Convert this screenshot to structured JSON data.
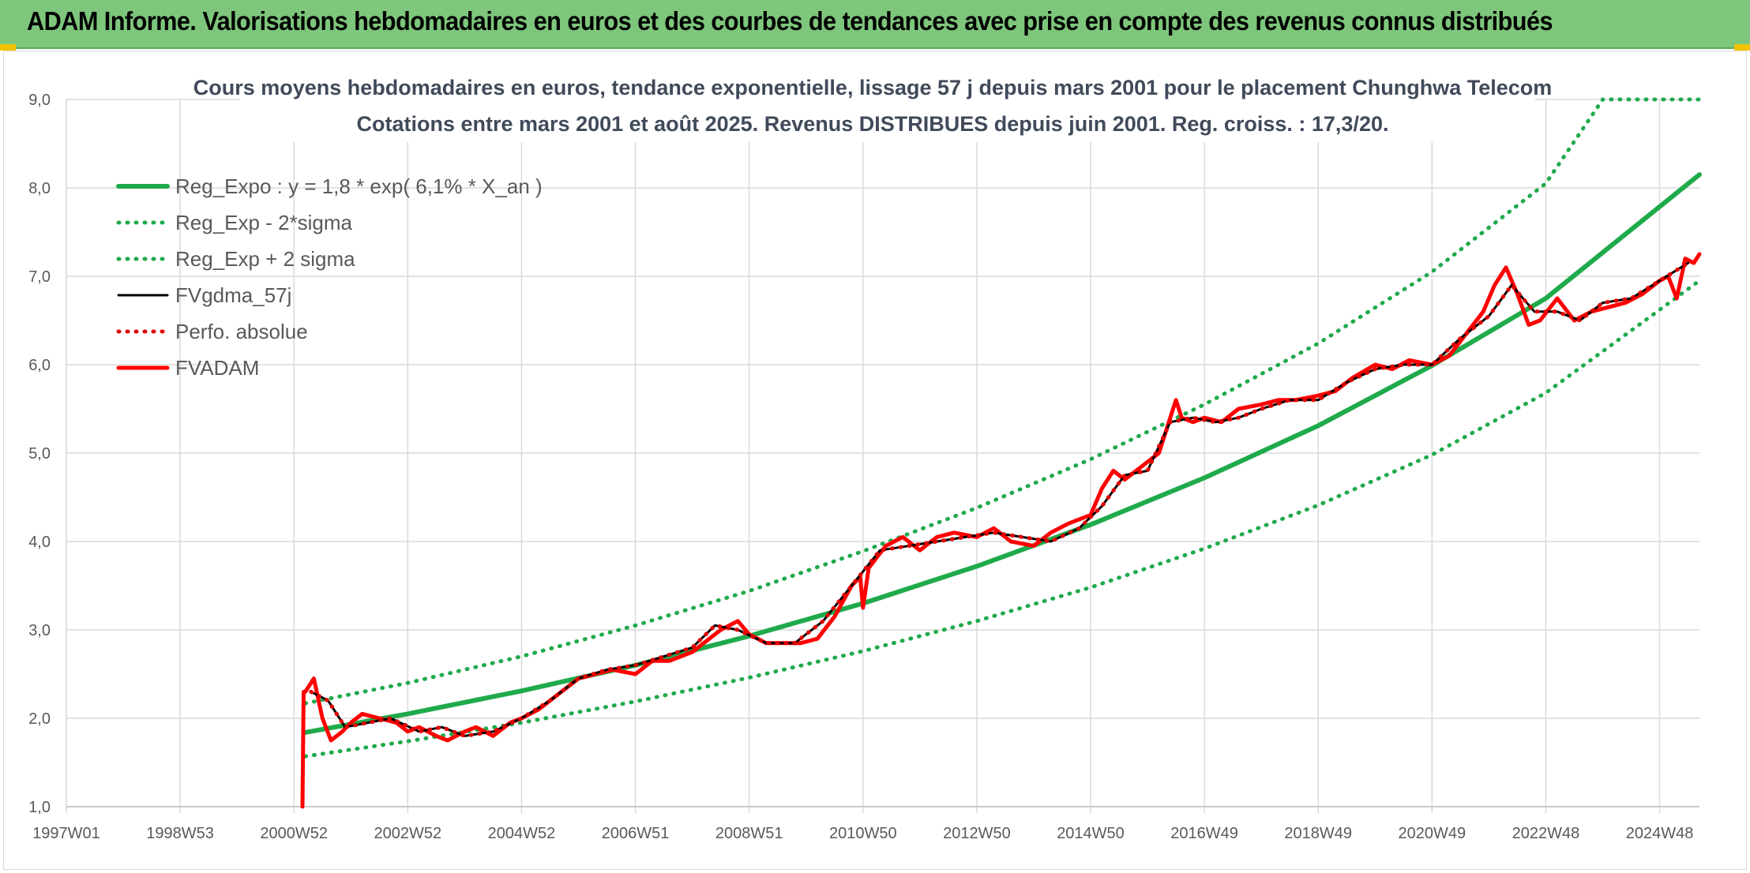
{
  "header": {
    "title": "ADAM Informe. Valorisations hebdomadaires en euros et des courbes de tendances avec prise en compte des revenus connus distribués"
  },
  "colors": {
    "header_bg": "#7dc67b",
    "reg_expo": "#1faa4b",
    "band": "#1faa4b",
    "fvgdma": "#000000",
    "perfo": "#e00000",
    "fvadam": "#ff0000",
    "grid": "#d9d9d9"
  },
  "chart_data": {
    "type": "line",
    "title": "Cours moyens hebdomadaires en euros, tendance exponentielle, lissage 57 j depuis mars 2001 pour le placement Chunghwa Telecom",
    "subtitle": "Cotations entre mars 2001 et août 2025. Revenus DISTRIBUES depuis juin 2001. Reg. croiss. : 17,3/20.",
    "xlabel": "",
    "ylabel": "",
    "ylim": [
      1.0,
      9.0
    ],
    "xlim": [
      1997.0,
      2025.7
    ],
    "y_ticks": [
      "1,0",
      "2,0",
      "3,0",
      "4,0",
      "5,0",
      "6,0",
      "7,0",
      "8,0",
      "9,0"
    ],
    "x_ticks": [
      {
        "label": "1997W01",
        "x": 1997.0
      },
      {
        "label": "1998W53",
        "x": 1999.0
      },
      {
        "label": "2000W52",
        "x": 2001.0
      },
      {
        "label": "2002W52",
        "x": 2003.0
      },
      {
        "label": "2004W52",
        "x": 2005.0
      },
      {
        "label": "2006W51",
        "x": 2007.0
      },
      {
        "label": "2008W51",
        "x": 2009.0
      },
      {
        "label": "2010W50",
        "x": 2011.0
      },
      {
        "label": "2012W50",
        "x": 2013.0
      },
      {
        "label": "2014W50",
        "x": 2015.0
      },
      {
        "label": "2016W49",
        "x": 2017.0
      },
      {
        "label": "2018W49",
        "x": 2019.0
      },
      {
        "label": "2020W49",
        "x": 2021.0
      },
      {
        "label": "2022W48",
        "x": 2023.0
      },
      {
        "label": "2024W48",
        "x": 2025.0
      }
    ],
    "grid": true,
    "legend_position": "top-left",
    "series": [
      {
        "name": "Reg_Expo : y = 1,8 * exp( 6,1% *  X_an )",
        "style": "solid-thick",
        "color": "#1faa4b",
        "x": [
          2001.2,
          2003,
          2005,
          2007,
          2009,
          2011,
          2013,
          2015,
          2017,
          2019,
          2021,
          2023,
          2025.7
        ],
        "values": [
          1.84,
          2.05,
          2.31,
          2.6,
          2.93,
          3.3,
          3.72,
          4.19,
          4.72,
          5.31,
          5.99,
          6.75,
          8.15
        ]
      },
      {
        "name": "Reg_Exp - 2*sigma",
        "style": "dotted",
        "color": "#1faa4b",
        "x": [
          2001.2,
          2003,
          2005,
          2007,
          2009,
          2011,
          2013,
          2015,
          2017,
          2019,
          2021,
          2023,
          2025.7
        ],
        "values": [
          1.57,
          1.74,
          1.95,
          2.19,
          2.46,
          2.76,
          3.1,
          3.48,
          3.92,
          4.41,
          4.98,
          5.68,
          6.95
        ]
      },
      {
        "name": "Reg_Exp + 2 sigma",
        "style": "dotted",
        "color": "#1faa4b",
        "x": [
          2001.2,
          2003,
          2005,
          2007,
          2009,
          2011,
          2013,
          2015,
          2017,
          2019,
          2021,
          2023,
          2024.0,
          2025.7
        ],
        "values": [
          2.17,
          2.4,
          2.7,
          3.05,
          3.44,
          3.89,
          4.38,
          4.93,
          5.55,
          6.24,
          7.05,
          8.05,
          9.0,
          9.0
        ]
      },
      {
        "name": "FVgdma_57j",
        "style": "solid",
        "color": "#000000",
        "x": [
          2001.3,
          2001.6,
          2001.9,
          2002.3,
          2002.7,
          2003.2,
          2003.6,
          2004.0,
          2004.5,
          2005.0,
          2005.5,
          2006.0,
          2006.5,
          2007.0,
          2007.5,
          2008.0,
          2008.4,
          2008.8,
          2009.3,
          2009.8,
          2010.3,
          2010.8,
          2011.3,
          2011.8,
          2012.3,
          2012.8,
          2013.3,
          2013.8,
          2014.3,
          2014.8,
          2015.2,
          2015.6,
          2016.0,
          2016.4,
          2016.8,
          2017.2,
          2017.6,
          2018.0,
          2018.5,
          2019.0,
          2019.5,
          2020.0,
          2020.5,
          2021.0,
          2021.5,
          2022.0,
          2022.4,
          2022.8,
          2023.2,
          2023.6,
          2024.0,
          2024.5,
          2025.0,
          2025.5
        ],
        "values": [
          2.3,
          2.2,
          1.9,
          1.95,
          2.0,
          1.85,
          1.9,
          1.8,
          1.85,
          2.0,
          2.2,
          2.45,
          2.55,
          2.6,
          2.7,
          2.8,
          3.05,
          3.0,
          2.85,
          2.85,
          3.1,
          3.5,
          3.9,
          3.95,
          4.0,
          4.05,
          4.1,
          4.05,
          4.0,
          4.15,
          4.4,
          4.75,
          4.8,
          5.35,
          5.4,
          5.35,
          5.4,
          5.5,
          5.6,
          5.6,
          5.8,
          5.95,
          6.0,
          6.0,
          6.3,
          6.55,
          6.9,
          6.6,
          6.6,
          6.5,
          6.7,
          6.75,
          6.95,
          7.15
        ]
      },
      {
        "name": "Perfo. absolue",
        "style": "dotted",
        "color": "#e00000",
        "x": [
          2001.3,
          2001.6,
          2001.9,
          2002.3,
          2002.7,
          2003.2,
          2003.6,
          2004.0,
          2004.5,
          2005.0,
          2005.5,
          2006.0,
          2006.5,
          2007.0,
          2007.5,
          2008.0,
          2008.4,
          2008.8,
          2009.3,
          2009.8,
          2010.3,
          2010.8,
          2011.3,
          2011.8,
          2012.3,
          2012.8,
          2013.3,
          2013.8,
          2014.3,
          2014.8,
          2015.2,
          2015.6,
          2016.0,
          2016.4,
          2016.8,
          2017.2,
          2017.6,
          2018.0,
          2018.5,
          2019.0,
          2019.5,
          2020.0,
          2020.5,
          2021.0,
          2021.5,
          2022.0,
          2022.4,
          2022.8,
          2023.2,
          2023.6,
          2024.0,
          2024.5,
          2025.0,
          2025.5
        ],
        "values": [
          2.3,
          2.2,
          1.9,
          1.95,
          2.0,
          1.85,
          1.9,
          1.8,
          1.85,
          2.0,
          2.2,
          2.45,
          2.55,
          2.6,
          2.7,
          2.8,
          3.05,
          3.0,
          2.85,
          2.85,
          3.1,
          3.5,
          3.9,
          3.95,
          4.0,
          4.05,
          4.1,
          4.05,
          4.0,
          4.15,
          4.4,
          4.75,
          4.8,
          5.35,
          5.4,
          5.35,
          5.4,
          5.5,
          5.6,
          5.6,
          5.8,
          5.95,
          6.0,
          6.0,
          6.3,
          6.55,
          6.9,
          6.6,
          6.6,
          6.5,
          6.7,
          6.75,
          6.95,
          7.15
        ]
      },
      {
        "name": "FVADAM",
        "style": "solid-thick",
        "color": "#ff0000",
        "x": [
          2001.15,
          2001.17,
          2001.2,
          2001.35,
          2001.5,
          2001.65,
          2001.85,
          2002.0,
          2002.2,
          2002.5,
          2002.8,
          2003.0,
          2003.2,
          2003.5,
          2003.7,
          2004.0,
          2004.2,
          2004.5,
          2004.8,
          2005.0,
          2005.3,
          2005.6,
          2006.0,
          2006.3,
          2006.6,
          2007.0,
          2007.3,
          2007.6,
          2008.0,
          2008.2,
          2008.5,
          2008.8,
          2009.0,
          2009.3,
          2009.6,
          2009.9,
          2010.2,
          2010.5,
          2010.8,
          2010.95,
          2011.0,
          2011.1,
          2011.4,
          2011.7,
          2012.0,
          2012.3,
          2012.6,
          2013.0,
          2013.3,
          2013.6,
          2014.0,
          2014.3,
          2014.6,
          2015.0,
          2015.2,
          2015.4,
          2015.6,
          2015.9,
          2016.2,
          2016.5,
          2016.6,
          2016.8,
          2017.0,
          2017.3,
          2017.6,
          2018.0,
          2018.3,
          2018.6,
          2019.0,
          2019.3,
          2019.6,
          2020.0,
          2020.3,
          2020.6,
          2021.0,
          2021.3,
          2021.6,
          2021.9,
          2022.1,
          2022.3,
          2022.5,
          2022.7,
          2022.9,
          2023.2,
          2023.5,
          2023.8,
          2024.1,
          2024.4,
          2024.7,
          2025.0,
          2025.15,
          2025.3,
          2025.45,
          2025.6,
          2025.7
        ],
        "values": [
          1.0,
          2.3,
          2.3,
          2.45,
          2.0,
          1.75,
          1.85,
          1.95,
          2.05,
          2.0,
          1.95,
          1.85,
          1.9,
          1.8,
          1.75,
          1.85,
          1.9,
          1.8,
          1.95,
          2.0,
          2.1,
          2.25,
          2.45,
          2.5,
          2.55,
          2.5,
          2.65,
          2.65,
          2.75,
          2.85,
          3.0,
          3.1,
          2.95,
          2.85,
          2.85,
          2.85,
          2.9,
          3.15,
          3.5,
          3.6,
          3.25,
          3.7,
          3.95,
          4.05,
          3.9,
          4.05,
          4.1,
          4.05,
          4.15,
          4.0,
          3.95,
          4.1,
          4.2,
          4.3,
          4.6,
          4.8,
          4.7,
          4.85,
          5.0,
          5.6,
          5.4,
          5.35,
          5.4,
          5.35,
          5.5,
          5.55,
          5.6,
          5.6,
          5.65,
          5.7,
          5.85,
          6.0,
          5.95,
          6.05,
          6.0,
          6.1,
          6.35,
          6.6,
          6.9,
          7.1,
          6.8,
          6.45,
          6.5,
          6.75,
          6.5,
          6.6,
          6.65,
          6.7,
          6.8,
          6.95,
          7.0,
          6.75,
          7.2,
          7.15,
          7.25
        ]
      }
    ]
  }
}
